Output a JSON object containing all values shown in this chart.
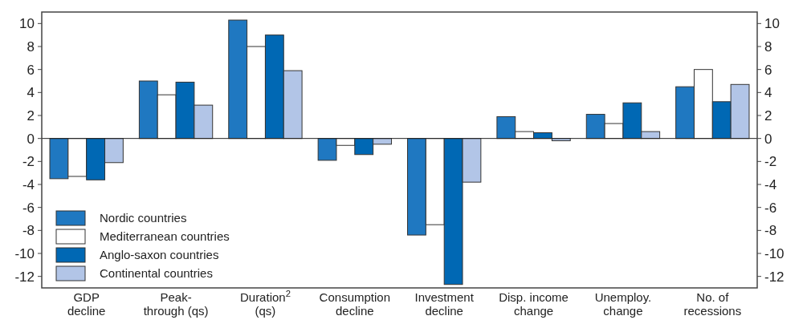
{
  "chart_data": {
    "type": "bar",
    "categories": [
      "GDP\ndecline",
      "Peak-\nthrough (qs)",
      "Duration$^{2}$\n(qs)",
      "Consumption\ndecline",
      "Investment\ndecline",
      "Disp. income\nchange",
      "Unemploy.\nchange",
      "No. of\nrecessions"
    ],
    "series": [
      {
        "name": "Nordic countries",
        "color": "#1f78c1",
        "values": [
          -3.5,
          5.0,
          10.3,
          -1.9,
          -8.4,
          1.9,
          2.1,
          4.5
        ]
      },
      {
        "name": "Mediterranean countries",
        "color": "#ffffff",
        "values": [
          -3.3,
          3.8,
          8.0,
          -0.6,
          -7.5,
          0.6,
          1.3,
          6.0
        ]
      },
      {
        "name": "Anglo-saxon countries",
        "color": "#0068b4",
        "values": [
          -3.6,
          4.9,
          9.0,
          -1.4,
          -12.7,
          0.5,
          3.1,
          3.2
        ]
      },
      {
        "name": "Continental countries",
        "color": "#b2c5e7",
        "values": [
          -2.1,
          2.9,
          5.9,
          -0.5,
          -3.8,
          -0.2,
          0.6,
          4.7
        ]
      }
    ],
    "ylim": [
      -13,
      11
    ],
    "yticks": [
      -12,
      -10,
      -8,
      -6,
      -4,
      -2,
      0,
      2,
      4,
      6,
      8,
      10
    ],
    "y2lim": [
      -13,
      11
    ],
    "y2ticks": [
      -12,
      -10,
      -8,
      -6,
      -4,
      -2,
      0,
      2,
      4,
      6,
      8,
      10
    ],
    "legend": "bottom left"
  }
}
